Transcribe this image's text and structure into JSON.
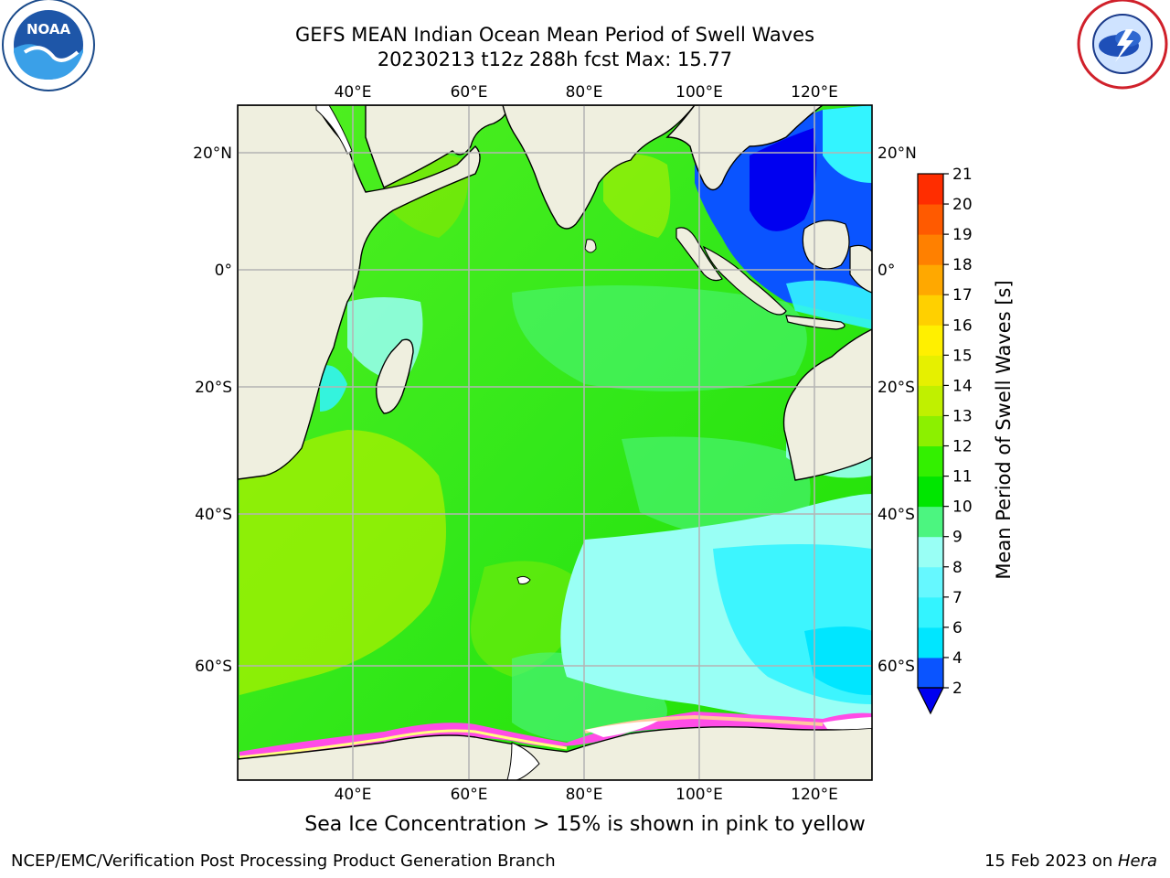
{
  "title_line1": "GEFS MEAN Indian Ocean Mean Period of Swell Waves",
  "title_line2": "20230213 t12z 288h fcst   Max: 15.77",
  "footnote": "Sea Ice Concentration > 15% is shown in pink to yellow",
  "credit_left": "NCEP/EMC/Verification Post Processing Product Generation Branch",
  "credit_right_date": "15 Feb 2023 on ",
  "credit_right_host": "Hera",
  "logos": {
    "left": "noaa-logo",
    "right": "nws-logo"
  },
  "map": {
    "lon_labels": [
      "40°E",
      "60°E",
      "80°E",
      "100°E",
      "120°E"
    ],
    "lat_labels": [
      "20°N",
      "0°",
      "20°S",
      "40°S",
      "60°S"
    ],
    "land_color": "#efefdf",
    "grid_color": "#b4b4b4"
  },
  "colorbar": {
    "title": "Mean Period of Swell Waves [s]",
    "tick_labels": [
      "2",
      "4",
      "6",
      "7",
      "8",
      "9",
      "10",
      "11",
      "12",
      "13",
      "14",
      "15",
      "16",
      "17",
      "18",
      "19",
      "20",
      "21"
    ],
    "colors": [
      "#0a54ff",
      "#00e6ff",
      "#33f4ff",
      "#66f8ff",
      "#99fff5",
      "#4cf580",
      "#00e600",
      "#33f000",
      "#8cf000",
      "#c0f000",
      "#e6f000",
      "#fff000",
      "#ffd000",
      "#ffa800",
      "#ff8000",
      "#ff5a00",
      "#ff2d00"
    ],
    "under_color": "#0000f0"
  }
}
